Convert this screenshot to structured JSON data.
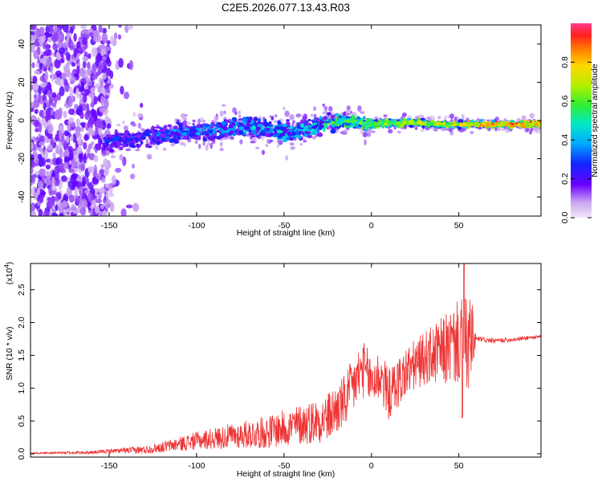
{
  "figure_title": "C2E5.2026.077.13.43.R03",
  "chart_data": [
    {
      "type": "heatmap",
      "name": "spectrogram",
      "xlabel": "Height of straight line (km)",
      "ylabel": "Frequency (Hz)",
      "xlim": [
        -195,
        97
      ],
      "ylim": [
        -50,
        50
      ],
      "xticks": [
        -150,
        -100,
        -50,
        0,
        50
      ],
      "yticks": [
        -40,
        -20,
        0,
        20,
        40
      ],
      "xtick_labels": [
        "-150",
        "-100",
        "-50",
        "0",
        "50"
      ],
      "ytick_labels": [
        "-40",
        "-20",
        "0",
        "20",
        "40"
      ],
      "ridge_track": {
        "x": [
          -150,
          -130,
          -110,
          -90,
          -70,
          -50,
          -35,
          -25,
          -15,
          0,
          20,
          40,
          60,
          80,
          97
        ],
        "freq_hz": [
          -11,
          -9,
          -6,
          -5,
          -3,
          -6,
          -4,
          -1,
          0,
          -2,
          -1,
          -2,
          -2,
          -2,
          -2
        ],
        "amplitude": [
          0.3,
          0.35,
          0.4,
          0.42,
          0.45,
          0.5,
          0.5,
          0.55,
          0.6,
          0.65,
          0.7,
          0.72,
          0.85,
          0.9,
          0.9
        ]
      },
      "noise_region_x": [
        -195,
        -150
      ],
      "colorbar": {
        "label": "Normalized spectral amplitude",
        "range": [
          0,
          1
        ],
        "ticks": [
          0.0,
          0.2,
          0.4,
          0.6,
          0.8
        ],
        "tick_labels": [
          "0.0",
          "0.2",
          "0.4",
          "0.6",
          "0.8"
        ]
      }
    },
    {
      "type": "line",
      "name": "snr",
      "xlabel": "Height of straight line (km)",
      "ylabel": "SNR (10 * v/v)",
      "scale_label": "(x10",
      "scale_exponent": "4",
      "scale_suffix": ")",
      "xlim": [
        -195,
        97
      ],
      "ylim": [
        -0.05,
        2.9
      ],
      "xticks": [
        -150,
        -100,
        -50,
        0,
        50
      ],
      "yticks": [
        0.0,
        0.5,
        1.0,
        1.5,
        2.0,
        2.5
      ],
      "xtick_labels": [
        "-150",
        "-100",
        "-50",
        "0",
        "50"
      ],
      "ytick_labels": [
        "0.0",
        "0.5",
        "1.0",
        "1.5",
        "2.0",
        "2.5"
      ],
      "color": "#ee3333",
      "series": [
        {
          "name": "SNR",
          "trend_x": [
            -195,
            -160,
            -150,
            -130,
            -120,
            -100,
            -80,
            -60,
            -40,
            -25,
            -15,
            -10,
            -5,
            0,
            5,
            10,
            20,
            30,
            40,
            50,
            57,
            60,
            70,
            80,
            90,
            97
          ],
          "trend_y": [
            0.01,
            0.02,
            0.04,
            0.06,
            0.1,
            0.2,
            0.27,
            0.33,
            0.45,
            0.55,
            0.8,
            1.05,
            1.3,
            1.1,
            1.2,
            0.9,
            1.25,
            1.45,
            1.55,
            1.7,
            1.65,
            1.75,
            1.72,
            1.74,
            1.77,
            1.78
          ],
          "noise_amp_x": [
            -195,
            -150,
            -120,
            -60,
            -30,
            -10,
            10,
            30,
            50,
            57,
            60,
            97
          ],
          "noise_amp_y": [
            0.01,
            0.03,
            0.08,
            0.25,
            0.35,
            0.45,
            0.4,
            0.4,
            0.65,
            0.8,
            0.04,
            0.03
          ],
          "peak_point": {
            "x": 53,
            "y": 2.9
          },
          "min_point": {
            "x": 52,
            "y": 0.55
          }
        }
      ]
    }
  ]
}
